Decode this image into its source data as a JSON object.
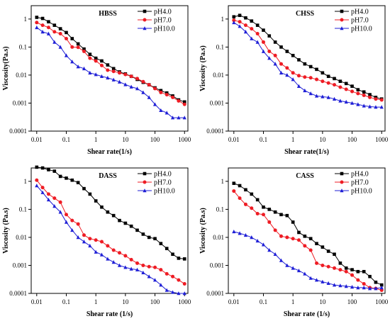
{
  "colors": {
    "pH4.0": "#000000",
    "pH7.0": "#ee1c24",
    "pH10.0": "#1f1fd6"
  },
  "chart_data": [
    {
      "type": "line",
      "title": "HBSS",
      "xlabel": "Shear rate(1/s)",
      "ylabel": "Viscosity(Pa.s)",
      "xscale": "log",
      "yscale": "log",
      "xlim": [
        0.0065,
        1300
      ],
      "ylim": [
        0.0001,
        3
      ],
      "legend": "top-right",
      "x": [
        0.01,
        0.0158,
        0.0251,
        0.0398,
        0.0631,
        0.1,
        0.158,
        0.251,
        0.398,
        0.631,
        1,
        1.58,
        2.51,
        3.98,
        6.31,
        10,
        15.8,
        25.1,
        39.8,
        63.1,
        100,
        158,
        251,
        398,
        631,
        1000
      ],
      "x_ticks": [
        "0.01",
        "0.1",
        "1",
        "10",
        "100",
        "1000"
      ],
      "y_ticks": [
        "0.0001",
        "0.001",
        "0.01",
        "0.1",
        "1"
      ],
      "series": [
        {
          "name": "pH4.0",
          "marker": "square",
          "values": [
            1.15,
            1.05,
            0.8,
            0.6,
            0.45,
            0.33,
            0.2,
            0.13,
            0.085,
            0.055,
            0.04,
            0.032,
            0.023,
            0.017,
            0.013,
            0.011,
            0.009,
            0.007,
            0.0055,
            0.0045,
            0.0035,
            0.0028,
            0.0023,
            0.0018,
            0.0013,
            0.0011
          ]
        },
        {
          "name": "pH7.0",
          "marker": "circle",
          "values": [
            0.75,
            0.6,
            0.5,
            0.35,
            0.3,
            0.2,
            0.1,
            0.098,
            0.07,
            0.04,
            0.032,
            0.022,
            0.015,
            0.0135,
            0.012,
            0.0105,
            0.009,
            0.0075,
            0.0058,
            0.0045,
            0.0033,
            0.0024,
            0.002,
            0.0016,
            0.0012,
            0.0009
          ]
        },
        {
          "name": "pH10.0",
          "marker": "triangle",
          "values": [
            0.5,
            0.35,
            0.3,
            0.15,
            0.1,
            0.05,
            0.03,
            0.02,
            0.017,
            0.012,
            0.0105,
            0.009,
            0.008,
            0.0068,
            0.0057,
            0.0046,
            0.0038,
            0.0033,
            0.0024,
            0.0016,
            0.0009,
            0.00055,
            0.00045,
            0.0003,
            0.0003,
            0.0003
          ]
        }
      ]
    },
    {
      "type": "line",
      "title": "CHSS",
      "xlabel": "Shear rate(1/s)",
      "ylabel": "Viscosity (Pa.s)",
      "xscale": "log",
      "yscale": "log",
      "xlim": [
        0.0065,
        1300
      ],
      "ylim": [
        0.0001,
        3
      ],
      "legend": "top-right",
      "x": [
        0.01,
        0.0158,
        0.0251,
        0.0398,
        0.0631,
        0.1,
        0.158,
        0.251,
        0.398,
        0.631,
        1,
        1.58,
        2.51,
        3.98,
        6.31,
        10,
        15.8,
        25.1,
        39.8,
        63.1,
        100,
        158,
        251,
        398,
        631,
        1000
      ],
      "x_ticks": [
        "0.01",
        "0.1",
        "1",
        "10",
        "100",
        "1000"
      ],
      "y_ticks": [
        "0.0001",
        "0.001",
        "0.01",
        "0.1",
        "1"
      ],
      "series": [
        {
          "name": "pH4.0",
          "marker": "square",
          "values": [
            1.2,
            1.35,
            1.1,
            0.85,
            0.6,
            0.4,
            0.25,
            0.15,
            0.1,
            0.07,
            0.05,
            0.035,
            0.025,
            0.02,
            0.016,
            0.012,
            0.009,
            0.0075,
            0.006,
            0.005,
            0.004,
            0.003,
            0.0025,
            0.002,
            0.0016,
            0.0014
          ]
        },
        {
          "name": "pH7.0",
          "marker": "circle",
          "values": [
            0.9,
            0.8,
            0.6,
            0.45,
            0.3,
            0.15,
            0.07,
            0.05,
            0.025,
            0.018,
            0.012,
            0.0095,
            0.0085,
            0.008,
            0.007,
            0.006,
            0.0052,
            0.0045,
            0.0037,
            0.0031,
            0.0026,
            0.0022,
            0.0019,
            0.0016,
            0.0014,
            0.0013
          ]
        },
        {
          "name": "pH10.0",
          "marker": "triangle",
          "values": [
            0.75,
            0.55,
            0.35,
            0.2,
            0.15,
            0.07,
            0.04,
            0.025,
            0.012,
            0.01,
            0.007,
            0.004,
            0.0028,
            0.0022,
            0.0018,
            0.0017,
            0.0016,
            0.0014,
            0.0012,
            0.0011,
            0.001,
            0.0009,
            0.0008,
            0.00075,
            0.00072,
            0.00072
          ]
        }
      ]
    },
    {
      "type": "line",
      "title": "DASS",
      "xlabel": "Shear rate (1/s)",
      "ylabel": "Viscosity (Pa.s)",
      "xscale": "log",
      "yscale": "log",
      "xlim": [
        0.0065,
        1300
      ],
      "ylim": [
        0.0001,
        3
      ],
      "legend": "top-right",
      "x": [
        0.01,
        0.0158,
        0.0251,
        0.0398,
        0.0631,
        0.1,
        0.158,
        0.251,
        0.398,
        0.631,
        1,
        1.58,
        2.51,
        3.98,
        6.31,
        10,
        15.8,
        25.1,
        39.8,
        63.1,
        100,
        158,
        251,
        398,
        631,
        1000
      ],
      "x_ticks": [
        "0.01",
        "0.1",
        "1",
        "10",
        "100",
        "1000"
      ],
      "y_ticks": [
        "0.0001",
        "0.001",
        "0.01",
        "0.1",
        "1"
      ],
      "series": [
        {
          "name": "pH4.0",
          "marker": "square",
          "values": [
            3.2,
            3.0,
            2.6,
            2.3,
            1.5,
            1.3,
            1.1,
            0.9,
            0.55,
            0.35,
            0.2,
            0.12,
            0.08,
            0.06,
            0.04,
            0.032,
            0.025,
            0.018,
            0.013,
            0.01,
            0.009,
            0.006,
            0.004,
            0.0025,
            0.0018,
            0.0017
          ]
        },
        {
          "name": "pH7.0",
          "marker": "circle",
          "values": [
            1.1,
            0.6,
            0.35,
            0.25,
            0.18,
            0.065,
            0.04,
            0.03,
            0.012,
            0.009,
            0.008,
            0.007,
            0.005,
            0.0035,
            0.0028,
            0.0022,
            0.0016,
            0.0012,
            0.001,
            0.0009,
            0.00085,
            0.0007,
            0.0005,
            0.0004,
            0.0003,
            0.00022
          ]
        },
        {
          "name": "pH10.0",
          "marker": "triangle",
          "values": [
            0.7,
            0.4,
            0.22,
            0.13,
            0.08,
            0.035,
            0.018,
            0.01,
            0.007,
            0.005,
            0.003,
            0.0024,
            0.0017,
            0.0013,
            0.001,
            0.00085,
            0.00075,
            0.0007,
            0.00055,
            0.0004,
            0.0003,
            0.0002,
            0.00013,
            0.00011,
            0.0001,
            0.0001
          ]
        }
      ]
    },
    {
      "type": "line",
      "title": "CASS",
      "xlabel": "Shear rate (1/s)",
      "ylabel": "Viscosity (Pa.s)",
      "xscale": "log",
      "yscale": "log",
      "xlim": [
        0.0065,
        1300
      ],
      "ylim": [
        0.0001,
        3
      ],
      "legend": "top-right",
      "x": [
        0.01,
        0.0158,
        0.0251,
        0.0398,
        0.0631,
        0.1,
        0.158,
        0.251,
        0.398,
        0.631,
        1,
        1.58,
        2.51,
        3.98,
        6.31,
        10,
        15.8,
        25.1,
        39.8,
        63.1,
        100,
        158,
        251,
        398,
        631,
        1000
      ],
      "x_ticks": [
        "0.01",
        "0.1",
        "1",
        "10",
        "100",
        "1000"
      ],
      "y_ticks": [
        "0.0001",
        "0.001",
        "0.01",
        "0.1",
        "1"
      ],
      "series": [
        {
          "name": "pH4.0",
          "marker": "square",
          "values": [
            0.85,
            0.7,
            0.5,
            0.35,
            0.22,
            0.12,
            0.1,
            0.08,
            0.065,
            0.06,
            0.035,
            0.015,
            0.011,
            0.009,
            0.006,
            0.0045,
            0.0032,
            0.0025,
            0.0012,
            0.0008,
            0.0007,
            0.0006,
            0.0006,
            0.0004,
            0.00025,
            0.0002
          ]
        },
        {
          "name": "pH7.0",
          "marker": "circle",
          "values": [
            0.45,
            0.25,
            0.15,
            0.11,
            0.07,
            0.065,
            0.035,
            0.018,
            0.011,
            0.01,
            0.009,
            0.008,
            0.005,
            0.0035,
            0.0012,
            0.001,
            0.0009,
            0.0008,
            0.0007,
            0.0006,
            0.00045,
            0.0003,
            0.00022,
            0.00016,
            0.00015,
            0.00013
          ]
        },
        {
          "name": "pH10.0",
          "marker": "triangle",
          "values": [
            0.016,
            0.014,
            0.012,
            0.01,
            0.0075,
            0.0055,
            0.0035,
            0.0025,
            0.0015,
            0.001,
            0.0008,
            0.00065,
            0.0005,
            0.00035,
            0.0003,
            0.00026,
            0.00023,
            0.0002,
            0.00019,
            0.00018,
            0.00017,
            0.00016,
            0.00016,
            0.00015,
            0.00015,
            0.00016
          ]
        }
      ]
    }
  ]
}
